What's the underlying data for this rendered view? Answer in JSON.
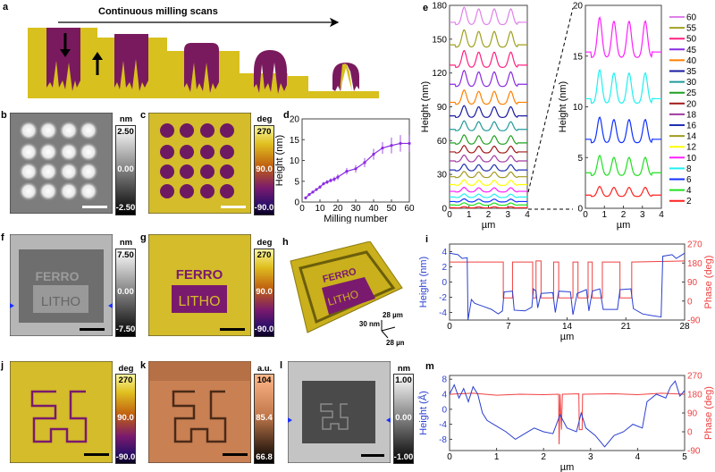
{
  "panels": {
    "a": {
      "label": "a",
      "title": "Continuous milling scans"
    },
    "b": {
      "label": "b",
      "unit": "nm",
      "max": "2.50",
      "mid": "0.00",
      "min": "-2.50"
    },
    "c": {
      "label": "c",
      "unit": "deg",
      "max": "270",
      "mid": "90.0",
      "min": "-90.0"
    },
    "d": {
      "label": "d"
    },
    "e": {
      "label": "e"
    },
    "f": {
      "label": "f",
      "unit": "nm",
      "max": "7.50",
      "mid": "0.00",
      "min": "-7.50"
    },
    "g": {
      "label": "g",
      "unit": "deg",
      "max": "270",
      "mid": "90.0",
      "min": "-90.0",
      "text1": "FERRO",
      "text2": "LITHO"
    },
    "h": {
      "label": "h",
      "z_scale": "30 nm",
      "x_scale": "28 µm",
      "y_scale": "28 µm",
      "text1": "FERRO",
      "text2": "LITHO"
    },
    "i": {
      "label": "i"
    },
    "j": {
      "label": "j",
      "unit": "deg",
      "max": "270",
      "mid": "90.0",
      "min": "-90.0"
    },
    "k": {
      "label": "k",
      "unit": "a.u.",
      "max": "104",
      "mid": "85.4",
      "min": "66.8"
    },
    "l": {
      "label": "l",
      "unit": "nm",
      "max": "1.00",
      "mid": "0.00",
      "min": "-1.00"
    },
    "m": {
      "label": "m"
    },
    "f_text": {
      "text1": "FERRO",
      "text2": "LITHO"
    }
  },
  "colors": {
    "yellow": "#d8c01e",
    "purple": "#7a1a5e",
    "blue": "#2a3fd0",
    "red": "#f04040",
    "violet": "#8a2be2"
  },
  "chart_data": [
    {
      "id": "d",
      "type": "line",
      "xlabel": "Milling number",
      "ylabel": "Height (nm)",
      "xlim": [
        0,
        60
      ],
      "ylim": [
        0,
        20
      ],
      "xticks": [
        0,
        10,
        20,
        30,
        40,
        50,
        60
      ],
      "yticks": [
        0,
        5,
        10,
        15,
        20
      ],
      "x": [
        2,
        4,
        6,
        8,
        10,
        12,
        14,
        16,
        18,
        20,
        25,
        30,
        35,
        40,
        45,
        50,
        55,
        60
      ],
      "y": [
        1.0,
        1.8,
        2.4,
        3.0,
        3.6,
        4.4,
        4.8,
        5.2,
        5.5,
        6.0,
        7.4,
        8.0,
        9.5,
        11.5,
        13.0,
        13.6,
        14.1,
        14.1
      ],
      "err": [
        0.2,
        0.2,
        0.3,
        0.3,
        0.4,
        0.4,
        0.5,
        0.5,
        0.6,
        0.7,
        0.8,
        0.9,
        1.1,
        1.3,
        1.4,
        1.9,
        2.0,
        2.0
      ],
      "color": "#8a2be2"
    },
    {
      "id": "e-left",
      "type": "line",
      "xlabel": "µm",
      "ylabel": "Height (nm)",
      "xlim": [
        0,
        4
      ],
      "ylim": [
        0,
        180
      ],
      "xticks": [
        0,
        1,
        2,
        3,
        4
      ],
      "yticks": [
        0,
        30,
        60,
        90,
        120,
        150,
        180
      ],
      "series": [
        {
          "name": "2",
          "color": "#ff2020",
          "offset": 0.5,
          "amp": 1
        },
        {
          "name": "4",
          "color": "#20e020",
          "offset": 3,
          "amp": 2
        },
        {
          "name": "6",
          "color": "#1030ff",
          "offset": 6,
          "amp": 2.5
        },
        {
          "name": "8",
          "color": "#20f0f0",
          "offset": 10,
          "amp": 3
        },
        {
          "name": "10",
          "color": "#ff20ff",
          "offset": 15,
          "amp": 3.8
        },
        {
          "name": "12",
          "color": "#ffff00",
          "offset": 21,
          "amp": 4.5
        },
        {
          "name": "14",
          "color": "#a09a20",
          "offset": 28,
          "amp": 5
        },
        {
          "name": "16",
          "color": "#2030b0",
          "offset": 34,
          "amp": 5.5
        },
        {
          "name": "18",
          "color": "#a03aa0",
          "offset": 42,
          "amp": 5.5
        },
        {
          "name": "20",
          "color": "#a01818",
          "offset": 50,
          "amp": 6
        },
        {
          "name": "25",
          "color": "#20a020",
          "offset": 58,
          "amp": 7.5
        },
        {
          "name": "30",
          "color": "#209a9a",
          "offset": 70,
          "amp": 8
        },
        {
          "name": "35",
          "color": "#1818a0",
          "offset": 82,
          "amp": 9.5
        },
        {
          "name": "40",
          "color": "#ff8000",
          "offset": 94,
          "amp": 11.5
        },
        {
          "name": "45",
          "color": "#8a2be2",
          "offset": 110,
          "amp": 13
        },
        {
          "name": "50",
          "color": "#ff2080",
          "offset": 127,
          "amp": 13.6
        },
        {
          "name": "55",
          "color": "#a0a020",
          "offset": 145,
          "amp": 14
        },
        {
          "name": "60",
          "color": "#e080e8",
          "offset": 165,
          "amp": 14
        }
      ]
    },
    {
      "id": "e-right",
      "type": "line",
      "xlabel": "µm",
      "ylabel": "Height (nm)",
      "xlim": [
        0,
        4
      ],
      "ylim": [
        0,
        20
      ],
      "xticks": [
        0,
        1,
        2,
        3,
        4
      ],
      "yticks": [
        0,
        5,
        10,
        15,
        20
      ],
      "series": [
        {
          "name": "2",
          "color": "#ff2020",
          "offset": 1.3,
          "amp": 0.9
        },
        {
          "name": "4",
          "color": "#20e020",
          "offset": 3.5,
          "amp": 1.8
        },
        {
          "name": "6",
          "color": "#1030ff",
          "offset": 6.8,
          "amp": 2.3
        },
        {
          "name": "8",
          "color": "#20f0f0",
          "offset": 10.8,
          "amp": 3.0
        },
        {
          "name": "10",
          "color": "#ff20ff",
          "offset": 15.4,
          "amp": 3.6
        }
      ],
      "legend": [
        "60",
        "55",
        "50",
        "45",
        "40",
        "35",
        "30",
        "25",
        "20",
        "18",
        "16",
        "14",
        "12",
        "10",
        "8",
        "6",
        "4",
        "2"
      ],
      "legend_position": "right"
    },
    {
      "id": "i",
      "type": "line",
      "xlabel": "µm",
      "ylabel": "Height (nm)",
      "y2label": "Phase (deg)",
      "xlim": [
        0,
        28
      ],
      "ylim": [
        -5,
        5
      ],
      "y2lim": [
        -90,
        270
      ],
      "xticks": [
        0,
        7,
        14,
        21,
        28
      ],
      "yticks": [
        -4,
        -2,
        0,
        2,
        4
      ],
      "y2ticks": [
        -90,
        0,
        90,
        180,
        270
      ],
      "height": [
        [
          0,
          3.8
        ],
        [
          1,
          3.6
        ],
        [
          1.5,
          3.1
        ],
        [
          2.1,
          3.2
        ],
        [
          2.2,
          -5
        ],
        [
          2.6,
          -2.3
        ],
        [
          3,
          -2.8
        ],
        [
          4,
          -3.2
        ],
        [
          5,
          -3.6
        ],
        [
          5.8,
          -4.2
        ],
        [
          6.3,
          -3.8
        ],
        [
          6.5,
          -1.3
        ],
        [
          7.5,
          -1.2
        ],
        [
          7.7,
          -3.7
        ],
        [
          9,
          -3.8
        ],
        [
          9.8,
          -3.3
        ],
        [
          10,
          -0.9
        ],
        [
          10.3,
          -1.2
        ],
        [
          10.5,
          -3.4
        ],
        [
          10.9,
          -1.5
        ],
        [
          12.3,
          -1.4
        ],
        [
          12.6,
          -4
        ],
        [
          13,
          -1.2
        ],
        [
          14.4,
          -1.3
        ],
        [
          14.7,
          -4.3
        ],
        [
          15.2,
          -1.5
        ],
        [
          16.3,
          -1
        ],
        [
          16.6,
          -3.8
        ],
        [
          17,
          -1.2
        ],
        [
          17.9,
          -0.9
        ],
        [
          18.3,
          -3.6
        ],
        [
          20,
          -3.6
        ],
        [
          20.3,
          -1
        ],
        [
          21.6,
          -0.9
        ],
        [
          21.9,
          -3.5
        ],
        [
          23,
          -4.2
        ],
        [
          24,
          -4.4
        ],
        [
          25.2,
          -4.6
        ],
        [
          25.4,
          3.4
        ],
        [
          26.5,
          3.6
        ],
        [
          27,
          3.1
        ],
        [
          28,
          3.8
        ]
      ],
      "phase": [
        [
          0,
          185
        ],
        [
          6.4,
          185
        ],
        [
          6.4,
          15
        ],
        [
          7.5,
          15
        ],
        [
          7.5,
          185
        ],
        [
          9.9,
          185
        ],
        [
          9.9,
          15
        ],
        [
          10.3,
          15
        ],
        [
          10.3,
          190
        ],
        [
          10.9,
          190
        ],
        [
          10.9,
          15
        ],
        [
          12.4,
          15
        ],
        [
          12.4,
          185
        ],
        [
          13,
          185
        ],
        [
          13,
          15
        ],
        [
          14.7,
          15
        ],
        [
          14.7,
          185
        ],
        [
          15.3,
          185
        ],
        [
          15.3,
          15
        ],
        [
          16.5,
          15
        ],
        [
          16.5,
          185
        ],
        [
          17,
          185
        ],
        [
          17,
          15
        ],
        [
          18.2,
          15
        ],
        [
          18.2,
          185
        ],
        [
          20.3,
          185
        ],
        [
          20.3,
          15
        ],
        [
          21.7,
          15
        ],
        [
          21.7,
          185
        ],
        [
          28,
          190
        ]
      ],
      "colors": {
        "height": "#2a3fd0",
        "phase": "#f04040"
      }
    },
    {
      "id": "m",
      "type": "line",
      "xlabel": "µm",
      "ylabel": "Height (Å)",
      "y2label": "Phase (deg)",
      "xlim": [
        0,
        5
      ],
      "ylim": [
        -11,
        9
      ],
      "y2lim": [
        -90,
        270
      ],
      "xticks": [
        0,
        1,
        2,
        3,
        4,
        5
      ],
      "yticks": [
        -8,
        -4,
        0,
        4,
        8
      ],
      "y2ticks": [
        -90,
        0,
        90,
        180,
        270
      ],
      "height": [
        [
          0,
          4
        ],
        [
          0.1,
          6.5
        ],
        [
          0.2,
          3
        ],
        [
          0.3,
          5.5
        ],
        [
          0.4,
          2
        ],
        [
          0.5,
          6
        ],
        [
          0.6,
          4
        ],
        [
          0.7,
          -1
        ],
        [
          0.8,
          -3
        ],
        [
          1,
          -4.5
        ],
        [
          1.2,
          -6
        ],
        [
          1.4,
          -8
        ],
        [
          1.6,
          -6.5
        ],
        [
          1.8,
          -5
        ],
        [
          2,
          -6
        ],
        [
          2.2,
          -6.5
        ],
        [
          2.35,
          -1.5
        ],
        [
          2.5,
          -5
        ],
        [
          2.7,
          -6
        ],
        [
          2.8,
          -1
        ],
        [
          2.9,
          -5
        ],
        [
          3.1,
          -7
        ],
        [
          3.3,
          -10
        ],
        [
          3.5,
          -7
        ],
        [
          3.7,
          -6
        ],
        [
          3.9,
          -4
        ],
        [
          4.1,
          -5
        ],
        [
          4.2,
          2
        ],
        [
          4.4,
          4
        ],
        [
          4.6,
          3
        ],
        [
          4.7,
          6
        ],
        [
          4.8,
          7.5
        ],
        [
          4.9,
          3.5
        ],
        [
          5,
          5
        ]
      ],
      "phase": [
        [
          0,
          180
        ],
        [
          0.5,
          185
        ],
        [
          1,
          175
        ],
        [
          1.5,
          180
        ],
        [
          2,
          178
        ],
        [
          2.32,
          180
        ],
        [
          2.33,
          -60
        ],
        [
          2.35,
          180
        ],
        [
          2.38,
          10
        ],
        [
          2.4,
          180
        ],
        [
          2.75,
          182
        ],
        [
          2.76,
          10
        ],
        [
          2.82,
          10
        ],
        [
          2.83,
          180
        ],
        [
          3.5,
          182
        ],
        [
          4,
          178
        ],
        [
          4.5,
          185
        ],
        [
          5,
          180
        ]
      ],
      "colors": {
        "height": "#2a3fd0",
        "phase": "#f04040"
      }
    }
  ]
}
